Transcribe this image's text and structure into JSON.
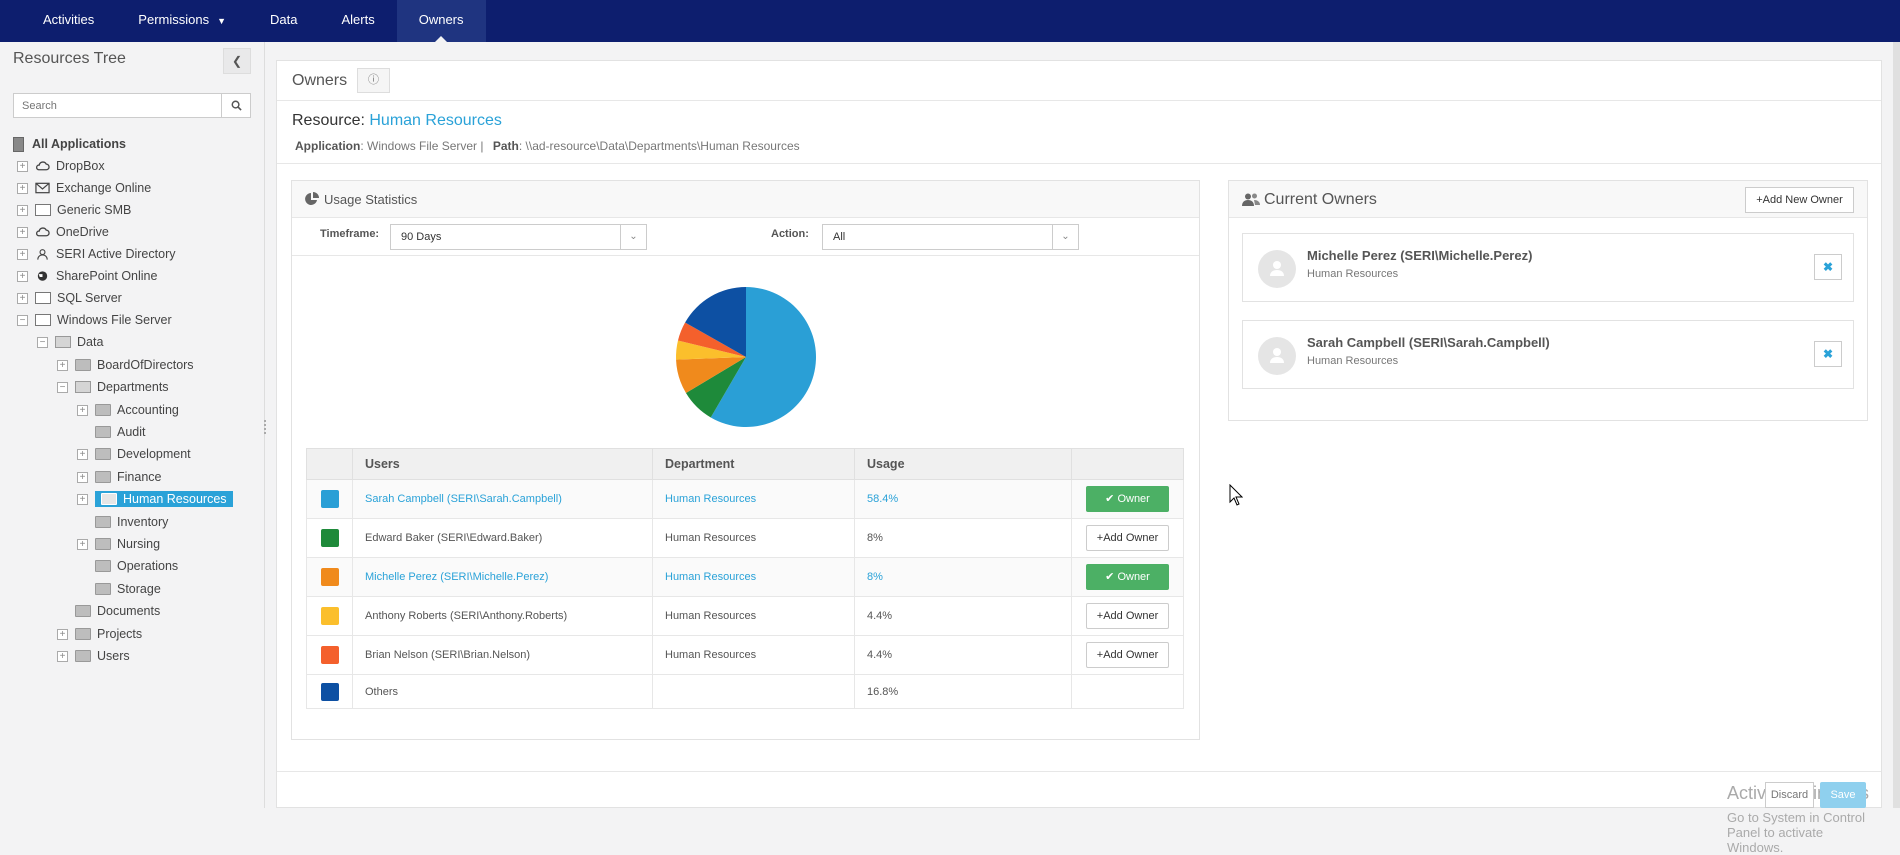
{
  "nav": {
    "items": [
      "Activities",
      "Permissions",
      "Data",
      "Alerts",
      "Owners"
    ],
    "active": "Owners"
  },
  "sidebar": {
    "title": "Resources Tree",
    "search_placeholder": "Search",
    "tree": {
      "root": "All Applications",
      "apps": [
        "DropBox",
        "Exchange Online",
        "Generic SMB",
        "OneDrive",
        "SERI Active Directory",
        "SharePoint Online",
        "SQL Server",
        "Windows File Server"
      ],
      "data": "Data",
      "board": "BoardOfDirectors",
      "departments": "Departments",
      "dept_items": [
        "Accounting",
        "Audit",
        "Development",
        "Finance",
        "Human Resources",
        "Inventory",
        "Nursing",
        "Operations",
        "Storage"
      ],
      "documents": "Documents",
      "projects": "Projects",
      "users": "Users"
    }
  },
  "main": {
    "title": "Owners",
    "resource_label": "Resource:",
    "resource_name": "Human Resources",
    "application_label": "Application",
    "application_value": ": Windows File Server |",
    "path_label": "Path",
    "path_value": ":  \\\\ad-resource\\Data\\Departments\\Human Resources"
  },
  "usage": {
    "title": "Usage Statistics",
    "timeframe_label": "Timeframe:",
    "timeframe_value": "90 Days",
    "action_label": "Action:",
    "action_value": "All",
    "columns": [
      "Users",
      "Department",
      "Usage"
    ],
    "rows": [
      {
        "user": "Sarah Campbell (SERI\\Sarah.Campbell)",
        "department": "Human Resources",
        "usage": "58.4%",
        "action": "Owner",
        "color": "#2a9fd6"
      },
      {
        "user": "Edward Baker (SERI\\Edward.Baker)",
        "department": "Human Resources",
        "usage": "8%",
        "action": "Add Owner",
        "color": "#1e8a3a"
      },
      {
        "user": "Michelle Perez (SERI\\Michelle.Perez)",
        "department": "Human Resources",
        "usage": "8%",
        "action": "Owner",
        "color": "#f08a1c"
      },
      {
        "user": "Anthony Roberts (SERI\\Anthony.Roberts)",
        "department": "Human Resources",
        "usage": "4.4%",
        "action": "Add Owner",
        "color": "#fbbf2c"
      },
      {
        "user": "Brian Nelson (SERI\\Brian.Nelson)",
        "department": "Human Resources",
        "usage": "4.4%",
        "action": "Add Owner",
        "color": "#f4602c"
      },
      {
        "user": "Others",
        "department": "",
        "usage": "16.8%",
        "action": "",
        "color": "#0d50a3"
      }
    ]
  },
  "chart_data": {
    "type": "pie",
    "labels": [
      "Sarah Campbell (SERI\\Sarah.Campbell)",
      "Edward Baker (SERI\\Edward.Baker)",
      "Michelle Perez (SERI\\Michelle.Perez)",
      "Anthony Roberts (SERI\\Anthony.Roberts)",
      "Brian Nelson (SERI\\Brian.Nelson)",
      "Others"
    ],
    "values": [
      58.4,
      8,
      8,
      4.4,
      4.4,
      16.8
    ],
    "colors": [
      "#2a9fd6",
      "#1e8a3a",
      "#f08a1c",
      "#fbbf2c",
      "#f4602c",
      "#0d50a3"
    ]
  },
  "owners": {
    "title": "Current Owners",
    "add_new_label": "Add New Owner",
    "list": [
      {
        "name": "Michelle Perez (SERI\\Michelle.Perez)",
        "department": "Human Resources"
      },
      {
        "name": "Sarah Campbell (SERI\\Sarah.Campbell)",
        "department": "Human Resources"
      }
    ]
  },
  "footer": {
    "discard_label": "Discard",
    "save_label": "Save"
  },
  "watermark": {
    "line1": "Activate Windows",
    "line2": "Go to System in Control Panel to activate Windows."
  }
}
